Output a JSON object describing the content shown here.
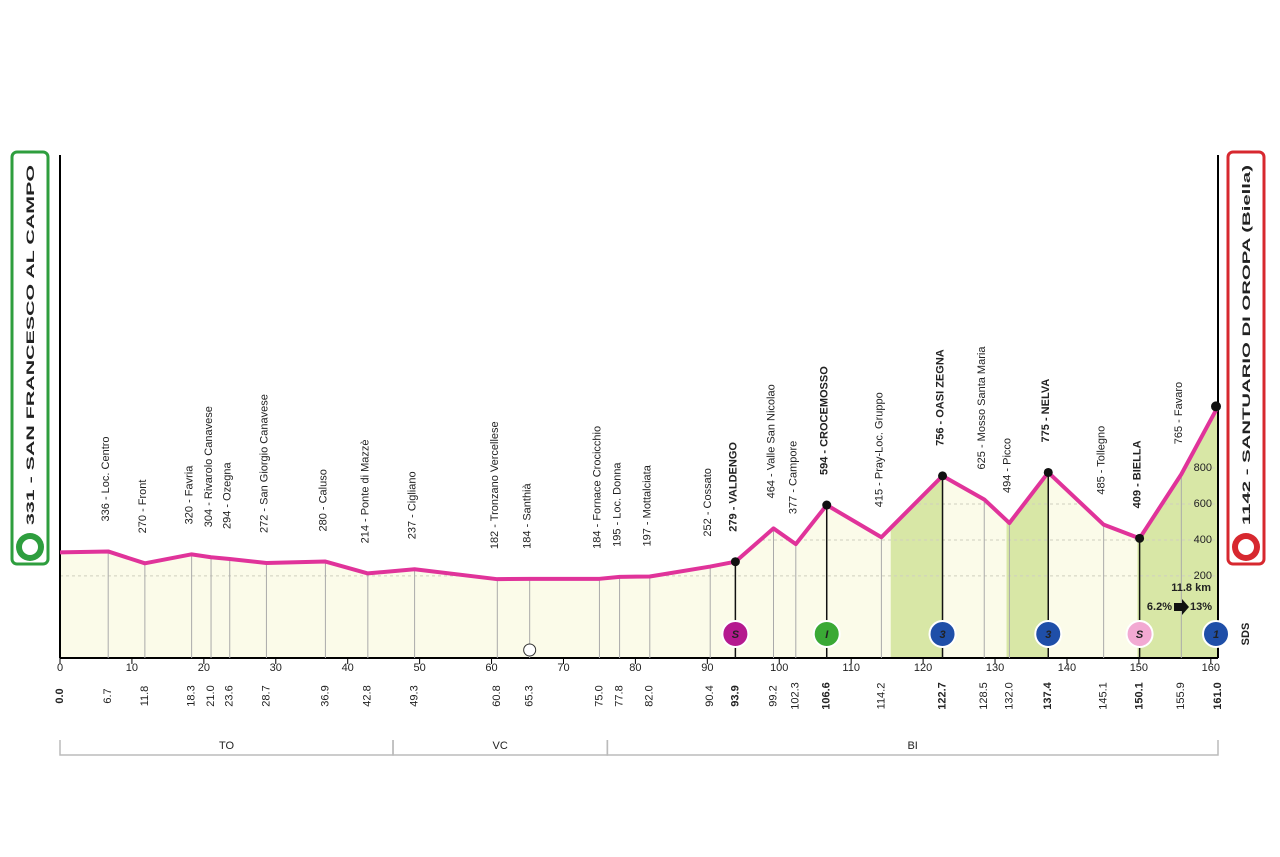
{
  "chart_data": {
    "type": "profile",
    "xlim": [
      0,
      161
    ],
    "ylim": [
      -256,
      2539
    ],
    "xticks": [
      0,
      10,
      20,
      30,
      40,
      50,
      60,
      70,
      80,
      90,
      100,
      110,
      120,
      130,
      140,
      150,
      160
    ],
    "yticks": [
      200,
      400,
      600,
      800
    ],
    "color": "#e0339a",
    "fill": "#fbfbe9",
    "climb_fill": "#d8e7a6",
    "points": [
      {
        "km": 0,
        "km_label": "0.0",
        "alt": 331,
        "label": "331 - SAN FRANCESCO AL CAMPO",
        "role": "start",
        "box_color": "#2e9e3e"
      },
      {
        "km": 6.7,
        "alt": 336,
        "label": "336 - Loc. Centro"
      },
      {
        "km": 11.8,
        "alt": 270,
        "label": "270 - Front"
      },
      {
        "km": 18.3,
        "alt": 320,
        "label": "320 - Favria"
      },
      {
        "km": 21.0,
        "km_label": "21.0",
        "alt": 304,
        "label": "304 - Rivarolo Canavese"
      },
      {
        "km": 23.6,
        "alt": 294,
        "label": "294 - Ozegna"
      },
      {
        "km": 28.7,
        "alt": 272,
        "label": "272 - San Giorgio Canavese"
      },
      {
        "km": 36.9,
        "alt": 280,
        "label": "280 - Caluso"
      },
      {
        "km": 42.8,
        "alt": 214,
        "label": "214 - Ponte di Mazzè"
      },
      {
        "km": 49.3,
        "alt": 237,
        "label": "237 - Cigliano"
      },
      {
        "km": 60.8,
        "alt": 182,
        "label": "182 - Tronzano Vercellese"
      },
      {
        "km": 65.3,
        "alt": 184,
        "label": "184 - Santhià"
      },
      {
        "km": 75.0,
        "km_label": "75.0",
        "alt": 184,
        "label": "184 - Fornace Crocicchio"
      },
      {
        "km": 77.8,
        "alt": 195,
        "label": "195 - Loc. Donna"
      },
      {
        "km": 82.0,
        "km_label": "82.0",
        "alt": 197,
        "label": "197 - Mottalciata"
      },
      {
        "km": 90.4,
        "alt": 252,
        "label": "252 - Cossato"
      },
      {
        "km": 93.9,
        "alt": 279,
        "label": "279 - VALDENGO",
        "role": "major",
        "badge": "S",
        "badge_color": "#b5198f"
      },
      {
        "km": 99.2,
        "alt": 464,
        "label": "464 - Valle San Nicolao"
      },
      {
        "km": 102.3,
        "alt": 377,
        "label": "377 - Campore"
      },
      {
        "km": 106.6,
        "alt": 594,
        "label": "594 - CROCEMOSSO",
        "role": "major",
        "badge": "I",
        "badge_color": "#3aa935"
      },
      {
        "km": 114.2,
        "alt": 415,
        "label": "415 - Pray-Loc. Gruppo"
      },
      {
        "km": 122.7,
        "alt": 756,
        "label": "756 - OASI ZEGNA",
        "role": "major",
        "badge": "3",
        "badge_color": "#1f4fa8"
      },
      {
        "km": 128.5,
        "alt": 625,
        "label": "625 - Mosso Santa Maria"
      },
      {
        "km": 132.0,
        "km_label": "132.0",
        "alt": 494,
        "label": "494 - Picco"
      },
      {
        "km": 137.4,
        "alt": 775,
        "label": "775 - NELVA",
        "role": "major",
        "badge": "3",
        "badge_color": "#1f4fa8"
      },
      {
        "km": 145.1,
        "alt": 485,
        "label": "485 - Tollegno"
      },
      {
        "km": 150.1,
        "alt": 409,
        "label": "409 - BIELLA",
        "role": "major",
        "badge": "S",
        "badge_color": "#f2a9d2"
      },
      {
        "km": 155.9,
        "alt": 765,
        "label": "765 - Favaro"
      },
      {
        "km": 161.0,
        "km_label": "161.0",
        "alt": 1142,
        "label": "1142 - SANTUARIO DI OROPA (Biella)",
        "role": "finish",
        "box_color": "#d7282f",
        "badge": "1",
        "badge_color": "#1f4fa8"
      }
    ],
    "climbs": [
      {
        "from": 115.5,
        "to": 122.7
      },
      {
        "from": 131.6,
        "to": 137.4
      },
      {
        "from": 149.8,
        "to": 161.0
      }
    ],
    "provinces": [
      {
        "name": "TO",
        "from": 0,
        "to": 46.3
      },
      {
        "name": "VC",
        "from": 46.3,
        "to": 76.1
      },
      {
        "name": "BI",
        "from": 76.1,
        "to": 161.0
      }
    ],
    "finish_climb": {
      "length": "11.8 km",
      "avg": "6.2%",
      "max": "13%"
    },
    "brand": "SDS"
  }
}
